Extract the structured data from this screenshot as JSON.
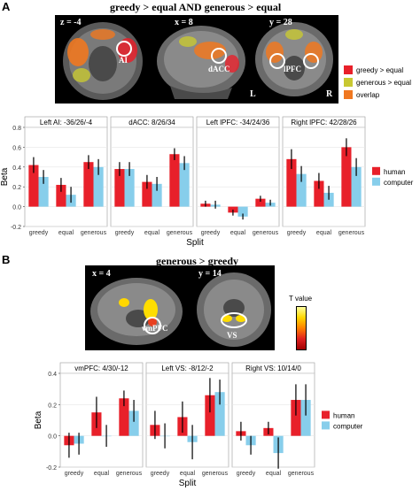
{
  "panel_a": {
    "letter": "A",
    "brain_title": "greedy > equal   AND   generous > equal",
    "slices": [
      {
        "coord": "z = -4",
        "roi": "AI"
      },
      {
        "coord": "x = 8",
        "roi": "dACC"
      },
      {
        "coord": "y = 28",
        "roi": "lPFC"
      }
    ],
    "lr_left": "L",
    "lr_right": "R",
    "legend": [
      {
        "label": "greedy > equal",
        "color": "#e8202a"
      },
      {
        "label": "generous > equal",
        "color": "#c8c832"
      },
      {
        "label": "overlap",
        "color": "#f07820"
      }
    ]
  },
  "panel_b": {
    "letter": "B",
    "brain_title": "generous > greedy",
    "slices": [
      {
        "coord": "x = 4",
        "roi": "vmPFC"
      },
      {
        "coord": "y = 14",
        "roi": "VS"
      }
    ],
    "colorbar_label": "T value"
  },
  "colors": {
    "human": "#e8202a",
    "computer": "#87ceeb"
  },
  "chart_data": [
    {
      "type": "bar",
      "group": "A",
      "categories": [
        "greedy",
        "equal",
        "generous"
      ],
      "ylabel": "Beta",
      "xlabel": "Split",
      "ylim": [
        -0.2,
        0.8
      ],
      "yticks": [
        "-0.2",
        "0.0",
        "0.2",
        "0.4",
        "0.6",
        "0.8"
      ],
      "legend": [
        "human",
        "computer"
      ],
      "facets": [
        {
          "title": "Left AI: -36/26/-4",
          "human": [
            0.42,
            0.22,
            0.45
          ],
          "human_err": [
            0.08,
            0.07,
            0.07
          ],
          "computer": [
            0.3,
            0.12,
            0.4
          ],
          "computer_err": [
            0.07,
            0.08,
            0.08
          ]
        },
        {
          "title": "dACC: 8/26/34",
          "human": [
            0.38,
            0.25,
            0.53
          ],
          "human_err": [
            0.07,
            0.07,
            0.06
          ],
          "computer": [
            0.38,
            0.23,
            0.44
          ],
          "computer_err": [
            0.07,
            0.07,
            0.07
          ]
        },
        {
          "title": "Left   lPFC: -34/24/36",
          "human": [
            0.03,
            -0.06,
            0.08
          ],
          "human_err": [
            0.03,
            0.03,
            0.03
          ],
          "computer": [
            0.02,
            -0.1,
            0.04
          ],
          "computer_err": [
            0.04,
            0.03,
            0.03
          ]
        },
        {
          "title": "Right   lPFC: 42/28/26",
          "human": [
            0.48,
            0.26,
            0.6
          ],
          "human_err": [
            0.1,
            0.08,
            0.09
          ],
          "computer": [
            0.33,
            0.14,
            0.4
          ],
          "computer_err": [
            0.08,
            0.07,
            0.09
          ]
        }
      ]
    },
    {
      "type": "bar",
      "group": "B",
      "categories": [
        "greedy",
        "equal",
        "generous"
      ],
      "ylabel": "Beta",
      "xlabel": "Split",
      "ylim": [
        -0.2,
        0.4
      ],
      "yticks": [
        "-0.2",
        "0.0",
        "0.2",
        "0.4"
      ],
      "legend": [
        "human",
        "computer"
      ],
      "facets": [
        {
          "title": "vmPFC: 4/30/-12",
          "human": [
            -0.06,
            0.15,
            0.24
          ],
          "human_err": [
            0.08,
            0.1,
            0.05
          ],
          "computer": [
            -0.05,
            0.0,
            0.16
          ],
          "computer_err": [
            0.07,
            0.07,
            0.07
          ]
        },
        {
          "title": "Left VS: -8/12/-2",
          "human": [
            0.07,
            0.12,
            0.26
          ],
          "human_err": [
            0.09,
            0.1,
            0.11
          ],
          "computer": [
            0.0,
            -0.04,
            0.28
          ],
          "computer_err": [
            0.08,
            0.11,
            0.08
          ]
        },
        {
          "title": "Right VS: 10/14/0",
          "human": [
            0.03,
            0.05,
            0.23
          ],
          "human_err": [
            0.06,
            0.04,
            0.1
          ],
          "computer": [
            -0.06,
            -0.11,
            0.23
          ],
          "computer_err": [
            0.06,
            0.1,
            0.1
          ]
        }
      ]
    }
  ]
}
